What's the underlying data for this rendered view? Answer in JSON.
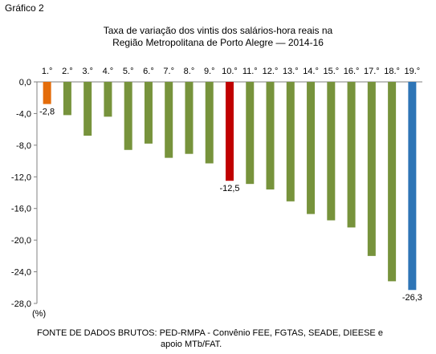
{
  "figure_label": "Gráfico 2",
  "title_line1": "Taxa de variação dos vintis dos salários-hora reais na",
  "title_line2": "Região Metropolitana de Porto Alegre — 2014-16",
  "unit_label": "(%)",
  "source_line1": "FONTE DE DADOS BRUTOS: PED-RMPA - Convênio FEE, FGTAS, SEADE, DIEESE e",
  "source_line2": "apoio MTb/FAT.",
  "colors": {
    "default": "#77933c",
    "first": "#e46c0a",
    "tenth": "#c00000",
    "last": "#2e75b6"
  },
  "chart_data": {
    "type": "bar",
    "categories": [
      "1.°",
      "2.°",
      "3.°",
      "4.°",
      "5.°",
      "6.°",
      "7.°",
      "8.°",
      "9.°",
      "10.°",
      "11.°",
      "12.°",
      "13.°",
      "14.°",
      "15.°",
      "16.°",
      "17.°",
      "18.°",
      "19.°"
    ],
    "values": [
      -2.8,
      -4.2,
      -6.8,
      -4.4,
      -8.6,
      -7.8,
      -9.6,
      -9.1,
      -10.3,
      -12.5,
      -12.9,
      -13.6,
      -15.1,
      -16.7,
      -17.5,
      -18.4,
      -22.0,
      -25.2,
      -26.3
    ],
    "ylim": [
      -28,
      0
    ],
    "yticks": [
      0,
      -4,
      -8,
      -12,
      -16,
      -20,
      -24,
      -28
    ],
    "ytick_labels": [
      "0,0",
      "-4,0",
      "-8,0",
      "-12,0",
      "-16,0",
      "-20,0",
      "-24,0",
      "-28,0"
    ],
    "data_labels": [
      {
        "index": 0,
        "text": "-2,8"
      },
      {
        "index": 9,
        "text": "-12,5"
      },
      {
        "index": 18,
        "text": "-26,3"
      }
    ],
    "highlight": {
      "0": "first",
      "9": "tenth",
      "18": "last"
    },
    "grid": false,
    "legend": "none"
  }
}
